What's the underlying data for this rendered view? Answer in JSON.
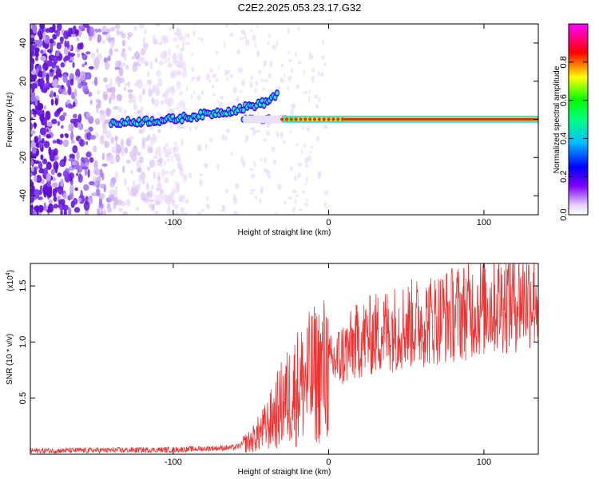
{
  "title": "C2E2.2025.053.23.17.G32",
  "chart_data": [
    {
      "type": "heatmap",
      "xlabel": "Height of straight line (km)",
      "ylabel": "Frequency (Hz)",
      "xlim": [
        -192,
        135
      ],
      "ylim": [
        -50,
        50
      ],
      "xticks": [
        -100,
        0,
        100
      ],
      "yticks": [
        -40,
        -20,
        0,
        20,
        40
      ],
      "colorbar": {
        "label": "Normalized spectral amplitude",
        "range": [
          0.0,
          1.0
        ],
        "ticks": [
          0.0,
          0.2,
          0.4,
          0.6,
          0.8
        ],
        "colors": [
          "#ffffff",
          "#e0c8f0",
          "#8000ff",
          "#0000ff",
          "#00e0ff",
          "#00ff40",
          "#ffff00",
          "#ff0000",
          "#ff00ff"
        ]
      },
      "features": [
        {
          "name": "noise_region",
          "x_range": [
            -192,
            -60
          ],
          "description_freq_spread": [
            -50,
            50
          ]
        },
        {
          "name": "rising_band",
          "x": [
            -140,
            -100,
            -60,
            -40,
            -32
          ],
          "freq": [
            -2,
            0,
            5,
            9,
            14
          ]
        },
        {
          "name": "main_line",
          "x_range": [
            -55,
            135
          ],
          "freq": 0,
          "amplitude_peak": 1.0
        }
      ]
    },
    {
      "type": "line",
      "xlabel": "Height of straight line (km)",
      "ylabel": "SNR (10 * v/v)",
      "multiplier_label": "(x10",
      "multiplier_exp": "4",
      "multiplier_close": ")",
      "xlim": [
        -192,
        135
      ],
      "ylim": [
        0,
        17000
      ],
      "xticks": [
        -100,
        0,
        100
      ],
      "yticks": [
        5000,
        10000,
        15000
      ],
      "ytick_labels": [
        "0.5",
        "1.0",
        "1.5"
      ],
      "color": "#ee3333",
      "envelope": {
        "x": [
          -192,
          -150,
          -100,
          -60,
          -50,
          -40,
          -30,
          -20,
          -10,
          0,
          10,
          20,
          40,
          60,
          80,
          100,
          120,
          135
        ],
        "y": [
          300,
          350,
          400,
          600,
          1200,
          2500,
          4500,
          6000,
          7000,
          7800,
          9000,
          10200,
          11200,
          11800,
          12500,
          13200,
          13800,
          14200
        ]
      }
    }
  ]
}
